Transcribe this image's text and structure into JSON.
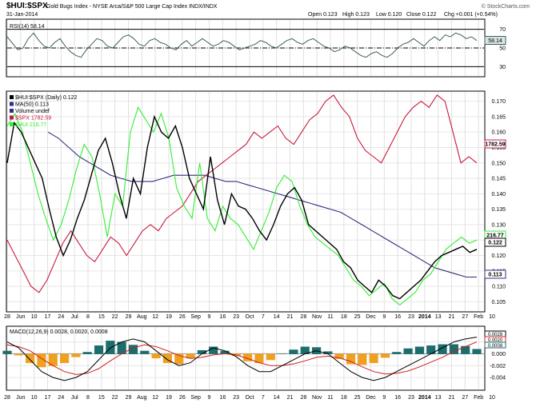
{
  "header": {
    "symbol": "$HUI:$SPX",
    "description": "Gold Bugs Index - NYSE Arca/S&P 500 Large Cap Index  INDX/INDX",
    "date": "31-Jan-2014",
    "open": "Open 0.123",
    "high": "High 0.123",
    "low": "Low 0.120",
    "close": "Close 0.122",
    "chg": "Chg +0.001 (+0.54%)",
    "watermark": "© StockCharts.com"
  },
  "colors": {
    "ratio": "#000000",
    "ma": "#2f2f7f",
    "spx": "#c8193c",
    "hui": "#33ee33",
    "rsi": "#3f5f5f",
    "macd_hist": "#f0a020",
    "macd_bar": "#1d6d6d",
    "signal": "#d02020"
  },
  "chart_data": [
    {
      "type": "line",
      "panel": "rsi",
      "title": "RSI(14) 58.14",
      "ylim": [
        20,
        80
      ],
      "ticks": [
        30,
        50,
        70
      ],
      "tick_labels": [
        "30",
        "50",
        "70"
      ],
      "last_value_label": "58.14",
      "series": [
        {
          "name": "RSI(14)",
          "values": [
            62,
            55,
            48,
            50,
            60,
            66,
            58,
            52,
            50,
            56,
            60,
            52,
            46,
            42,
            40,
            48,
            54,
            60,
            58,
            52,
            50,
            56,
            62,
            64,
            60,
            54,
            52,
            58,
            60,
            56,
            54,
            50,
            48,
            54,
            58,
            52,
            56,
            60,
            56,
            52,
            54,
            58,
            56,
            52,
            48,
            50,
            52,
            54,
            58,
            56,
            52,
            50,
            54,
            58,
            60,
            56,
            54,
            58,
            60,
            56,
            52,
            50,
            46,
            48,
            52,
            50,
            46,
            42,
            40,
            44,
            46,
            42,
            40,
            44,
            50,
            54,
            56,
            60,
            56,
            52,
            58,
            62,
            58,
            64,
            62,
            66,
            64,
            60,
            62,
            58
          ]
        }
      ]
    },
    {
      "type": "line",
      "panel": "price",
      "title": "$HUI:$SPX (Daily) 0.122",
      "ylim": [
        0.102,
        0.173
      ],
      "ticks": [
        0.105,
        0.11,
        0.115,
        0.12,
        0.125,
        0.13,
        0.135,
        0.14,
        0.145,
        0.15,
        0.155,
        0.16,
        0.165,
        0.17
      ],
      "tick_labels": [
        "0.105",
        "0.110",
        "0.115",
        "0.120",
        "0.125",
        "0.130",
        "0.135",
        "0.140",
        "0.145",
        "0.150",
        "0.155",
        "0.160",
        "0.165",
        "0.170"
      ],
      "legend": [
        {
          "label": "$HUI:$SPX (Daily) 0.122",
          "color": "#000000"
        },
        {
          "label": "MA(50) 0.113",
          "color": "#2f2f7f"
        },
        {
          "label": "Volume undef",
          "color": "#2f2f7f"
        },
        {
          "label": "$SPX 1782.59",
          "color": "#c8193c"
        },
        {
          "label": "$HUI 216.77",
          "color": "#33ee33"
        }
      ],
      "value_labels": [
        "1782.59",
        "216.77",
        "0.122",
        "0.113"
      ],
      "series": [
        {
          "name": "$HUI:$SPX",
          "values": [
            0.15,
            0.163,
            0.16,
            0.155,
            0.15,
            0.145,
            0.135,
            0.126,
            0.12,
            0.125,
            0.132,
            0.138,
            0.146,
            0.154,
            0.158,
            0.15,
            0.14,
            0.132,
            0.145,
            0.14,
            0.155,
            0.165,
            0.16,
            0.158,
            0.162,
            0.155,
            0.145,
            0.14,
            0.135,
            0.152,
            0.138,
            0.13,
            0.14,
            0.136,
            0.135,
            0.132,
            0.128,
            0.125,
            0.13,
            0.136,
            0.14,
            0.142,
            0.138,
            0.13,
            0.128,
            0.126,
            0.124,
            0.122,
            0.118,
            0.116,
            0.112,
            0.11,
            0.108,
            0.112,
            0.11,
            0.107,
            0.106,
            0.108,
            0.11,
            0.112,
            0.115,
            0.118,
            0.12,
            0.121,
            0.122,
            0.123,
            0.121,
            0.122
          ]
        },
        {
          "name": "MA(50)",
          "values": [
            0.16,
            0.158,
            0.155,
            0.152,
            0.15,
            0.148,
            0.146,
            0.145,
            0.144,
            0.144,
            0.144,
            0.145,
            0.146,
            0.146,
            0.146,
            0.146,
            0.145,
            0.144,
            0.144,
            0.143,
            0.142,
            0.141,
            0.14,
            0.139,
            0.138,
            0.137,
            0.136,
            0.135,
            0.134,
            0.132,
            0.13,
            0.128,
            0.126,
            0.124,
            0.122,
            0.12,
            0.118,
            0.116,
            0.115,
            0.114,
            0.113,
            0.113
          ]
        },
        {
          "name": "$SPX",
          "values": [
            0.125,
            0.12,
            0.115,
            0.11,
            0.108,
            0.112,
            0.118,
            0.124,
            0.128,
            0.124,
            0.12,
            0.118,
            0.122,
            0.126,
            0.124,
            0.12,
            0.124,
            0.128,
            0.13,
            0.128,
            0.132,
            0.134,
            0.136,
            0.14,
            0.144,
            0.146,
            0.148,
            0.15,
            0.152,
            0.154,
            0.156,
            0.16,
            0.158,
            0.16,
            0.162,
            0.158,
            0.156,
            0.16,
            0.164,
            0.166,
            0.17,
            0.172,
            0.168,
            0.165,
            0.158,
            0.154,
            0.152,
            0.15,
            0.155,
            0.16,
            0.165,
            0.168,
            0.17,
            0.168,
            0.172,
            0.17,
            0.16,
            0.15,
            0.152,
            0.15
          ]
        },
        {
          "name": "$HUI",
          "values": [
            0.162,
            0.166,
            0.16,
            0.15,
            0.14,
            0.132,
            0.125,
            0.13,
            0.138,
            0.148,
            0.156,
            0.152,
            0.14,
            0.126,
            0.14,
            0.136,
            0.16,
            0.168,
            0.164,
            0.16,
            0.166,
            0.158,
            0.142,
            0.136,
            0.132,
            0.15,
            0.132,
            0.128,
            0.136,
            0.132,
            0.13,
            0.126,
            0.122,
            0.128,
            0.134,
            0.142,
            0.146,
            0.144,
            0.136,
            0.13,
            0.126,
            0.124,
            0.122,
            0.12,
            0.116,
            0.112,
            0.11,
            0.107,
            0.109,
            0.111,
            0.106,
            0.104,
            0.106,
            0.108,
            0.112,
            0.114,
            0.118,
            0.122,
            0.124,
            0.126,
            0.124,
            0.125
          ]
        }
      ]
    },
    {
      "type": "line",
      "panel": "macd",
      "title": "MACD(12,26,9) 0.0028, 0.0020, 0.0008",
      "ylim": [
        -0.006,
        0.0045
      ],
      "ticks": [
        -0.004,
        -0.002,
        0.0,
        0.002
      ],
      "tick_labels": [
        "-0.004",
        "-0.002",
        "0.000",
        "0.002"
      ],
      "value_labels": [
        "0.0028",
        "0.0020",
        "0.0008"
      ],
      "series": [
        {
          "name": "MACD",
          "values": [
            0.002,
            0.001,
            -0.001,
            -0.003,
            -0.004,
            -0.0045,
            -0.004,
            -0.003,
            -0.001,
            0.001,
            0.002,
            0.0025,
            0.002,
            0.0005,
            -0.001,
            -0.002,
            -0.0015,
            0.0,
            0.001,
            0.0005,
            -0.0005,
            -0.002,
            -0.003,
            -0.003,
            -0.002,
            -0.001,
            0.0,
            0.0005,
            0.0,
            -0.0015,
            -0.003,
            -0.004,
            -0.0045,
            -0.004,
            -0.003,
            -0.002,
            -0.001,
            0.0,
            0.001,
            0.002,
            0.0025,
            0.0028
          ]
        },
        {
          "name": "Signal",
          "values": [
            0.0015,
            0.0012,
            0.0005,
            -0.0008,
            -0.002,
            -0.003,
            -0.0035,
            -0.0033,
            -0.0025,
            -0.0012,
            0.0,
            0.001,
            0.0015,
            0.0012,
            0.0005,
            -0.0003,
            -0.0008,
            -0.0006,
            -0.0002,
            0.0,
            -0.0002,
            -0.0008,
            -0.0015,
            -0.002,
            -0.002,
            -0.0017,
            -0.0012,
            -0.0006,
            -0.0004,
            -0.0007,
            -0.0013,
            -0.0022,
            -0.003,
            -0.0034,
            -0.0033,
            -0.0029,
            -0.0022,
            -0.0014,
            -0.0006,
            0.0004,
            0.0012,
            0.002
          ]
        },
        {
          "name": "Histogram",
          "values": [
            0.0005,
            -0.0002,
            -0.0015,
            -0.0022,
            -0.002,
            -0.0015,
            -0.0005,
            0.0003,
            0.0014,
            0.0022,
            0.002,
            0.0015,
            0.0005,
            -0.0007,
            -0.0015,
            -0.0017,
            -0.0007,
            0.0006,
            0.0012,
            0.0005,
            -0.0003,
            -0.0012,
            -0.0015,
            -0.001,
            0.0,
            0.0007,
            0.0012,
            0.0011,
            0.0004,
            -0.0008,
            -0.0017,
            -0.0018,
            -0.0015,
            -0.0006,
            0.0003,
            0.0009,
            0.0012,
            0.0014,
            0.0016,
            0.0016,
            0.0013,
            0.0008
          ]
        }
      ]
    }
  ],
  "x_axis": {
    "labels": [
      "28",
      "Jun",
      "10",
      "17",
      "24",
      "Jul",
      "8",
      "15",
      "22",
      "29",
      "Aug",
      "12",
      "19",
      "26",
      "Sep",
      "9",
      "16",
      "23",
      "Oct",
      "7",
      "14",
      "21",
      "28",
      "Nov",
      "11",
      "18",
      "25",
      "Dec",
      "9",
      "16",
      "23",
      "2014",
      "13",
      "21",
      "27",
      "Feb",
      "10"
    ]
  }
}
